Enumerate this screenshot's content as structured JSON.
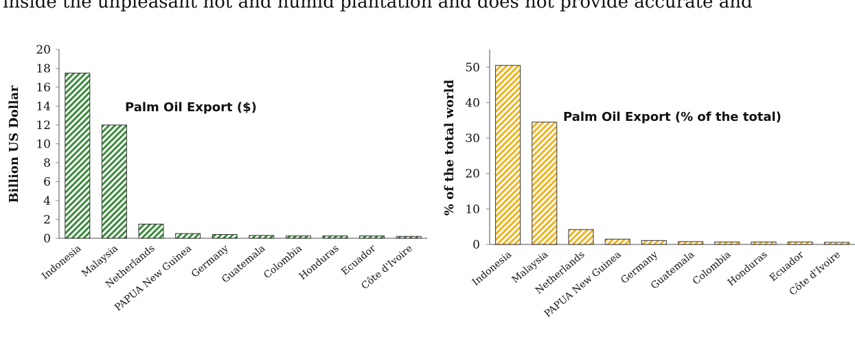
{
  "page": {
    "header_text": "inside the unpleasant hot and humid plantation and does not provide accurate and"
  },
  "chart_data": [
    {
      "type": "bar",
      "title": "Palm Oil Export ($)",
      "xlabel": "",
      "ylabel": "Billion US Dollar",
      "ylim": [
        0,
        20
      ],
      "yticks": [
        0,
        2,
        4,
        6,
        8,
        10,
        12,
        14,
        16,
        18,
        20
      ],
      "categories": [
        "Indonesia",
        "Malaysia",
        "Netherlands",
        "PAPUA New Guinea",
        "Germany",
        "Guatemala",
        "Colombia",
        "Honduras",
        "Ecuador",
        "Côte d'Ivoire"
      ],
      "values": [
        17.5,
        12.0,
        1.5,
        0.5,
        0.4,
        0.3,
        0.25,
        0.25,
        0.25,
        0.2
      ],
      "grid": false,
      "bar_color": "#3a8a3a",
      "bar_pattern": "diagonal-hatch"
    },
    {
      "type": "bar",
      "title": "Palm Oil Export (% of the total)",
      "xlabel": "",
      "ylabel": "% of the total world",
      "ylim": [
        0,
        55
      ],
      "yticks": [
        0,
        10,
        20,
        30,
        40,
        50
      ],
      "categories": [
        "Indonesia",
        "Malaysia",
        "Netherlands",
        "PAPUA New Guinea",
        "Germany",
        "Guatemala",
        "Colombia",
        "Honduras",
        "Ecuador",
        "Côte d'Ivoire"
      ],
      "values": [
        50.5,
        34.5,
        4.2,
        1.5,
        1.1,
        0.8,
        0.7,
        0.7,
        0.7,
        0.6
      ],
      "grid": false,
      "bar_color": "#f2b21c",
      "bar_pattern": "diagonal-hatch"
    }
  ]
}
